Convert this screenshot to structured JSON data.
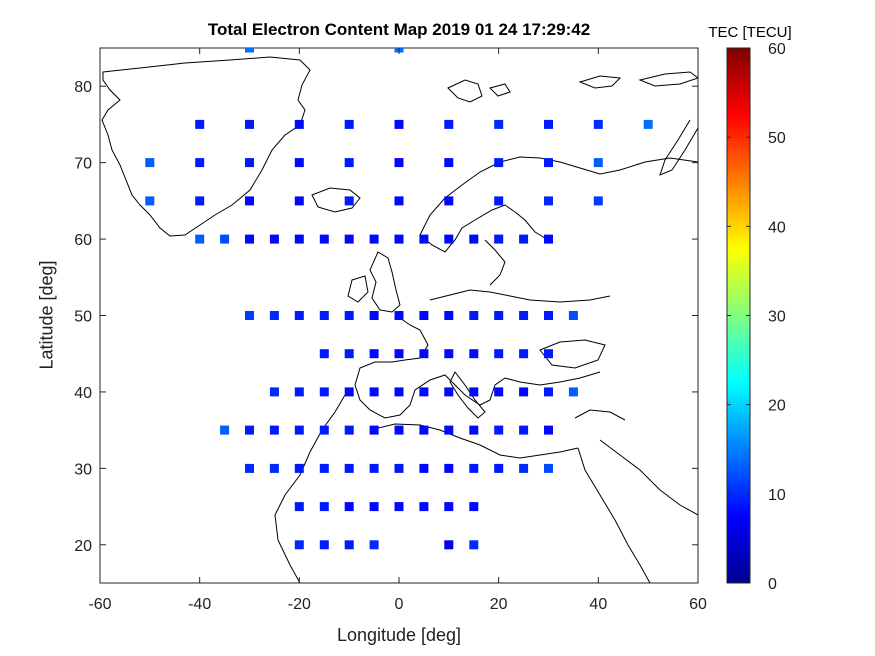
{
  "chart_data": {
    "type": "scatter",
    "title": "Total Electron Content Map 2019 01 24 17:29:42",
    "xlabel": "Longitude [deg]",
    "ylabel": "Latitude [deg]",
    "xlim": [
      -60,
      60
    ],
    "ylim": [
      15,
      85
    ],
    "xticks": [
      -60,
      -40,
      -20,
      0,
      20,
      40,
      60
    ],
    "yticks": [
      20,
      30,
      40,
      50,
      60,
      70,
      80
    ],
    "colorbar": {
      "label": "TEC [TECU]",
      "range": [
        0,
        60
      ],
      "ticks": [
        0,
        10,
        20,
        30,
        40,
        50,
        60
      ],
      "colormap": "jet"
    },
    "grid": false,
    "points": [
      {
        "lon": -30,
        "lat": 85,
        "tec": 14
      },
      {
        "lon": 0,
        "lat": 85,
        "tec": 14
      },
      {
        "lon": -40,
        "lat": 75,
        "tec": 9
      },
      {
        "lon": -30,
        "lat": 75,
        "tec": 9
      },
      {
        "lon": -20,
        "lat": 75,
        "tec": 8
      },
      {
        "lon": -10,
        "lat": 75,
        "tec": 9
      },
      {
        "lon": 0,
        "lat": 75,
        "tec": 8
      },
      {
        "lon": 10,
        "lat": 75,
        "tec": 9
      },
      {
        "lon": 20,
        "lat": 75,
        "tec": 10
      },
      {
        "lon": 30,
        "lat": 75,
        "tec": 9
      },
      {
        "lon": 40,
        "lat": 75,
        "tec": 10
      },
      {
        "lon": 50,
        "lat": 75,
        "tec": 14
      },
      {
        "lon": -50,
        "lat": 70,
        "tec": 13
      },
      {
        "lon": -40,
        "lat": 70,
        "tec": 9
      },
      {
        "lon": -30,
        "lat": 70,
        "tec": 9
      },
      {
        "lon": -20,
        "lat": 70,
        "tec": 8
      },
      {
        "lon": -10,
        "lat": 70,
        "tec": 9
      },
      {
        "lon": 0,
        "lat": 70,
        "tec": 8
      },
      {
        "lon": 10,
        "lat": 70,
        "tec": 8
      },
      {
        "lon": 20,
        "lat": 70,
        "tec": 9
      },
      {
        "lon": 30,
        "lat": 70,
        "tec": 9
      },
      {
        "lon": 40,
        "lat": 70,
        "tec": 13
      },
      {
        "lon": -50,
        "lat": 65,
        "tec": 13
      },
      {
        "lon": -40,
        "lat": 65,
        "tec": 9
      },
      {
        "lon": -30,
        "lat": 65,
        "tec": 8
      },
      {
        "lon": -20,
        "lat": 65,
        "tec": 8
      },
      {
        "lon": -10,
        "lat": 65,
        "tec": 9
      },
      {
        "lon": 0,
        "lat": 65,
        "tec": 8
      },
      {
        "lon": 10,
        "lat": 65,
        "tec": 8
      },
      {
        "lon": 20,
        "lat": 65,
        "tec": 9
      },
      {
        "lon": 30,
        "lat": 65,
        "tec": 10
      },
      {
        "lon": 40,
        "lat": 65,
        "tec": 11
      },
      {
        "lon": -40,
        "lat": 60,
        "tec": 13
      },
      {
        "lon": -35,
        "lat": 60,
        "tec": 12
      },
      {
        "lon": -30,
        "lat": 60,
        "tec": 8
      },
      {
        "lon": -25,
        "lat": 60,
        "tec": 8
      },
      {
        "lon": -20,
        "lat": 60,
        "tec": 8
      },
      {
        "lon": -15,
        "lat": 60,
        "tec": 8
      },
      {
        "lon": -10,
        "lat": 60,
        "tec": 8
      },
      {
        "lon": -5,
        "lat": 60,
        "tec": 8
      },
      {
        "lon": 0,
        "lat": 60,
        "tec": 8
      },
      {
        "lon": 5,
        "lat": 60,
        "tec": 8
      },
      {
        "lon": 10,
        "lat": 60,
        "tec": 8
      },
      {
        "lon": 15,
        "lat": 60,
        "tec": 8
      },
      {
        "lon": 20,
        "lat": 60,
        "tec": 9
      },
      {
        "lon": 25,
        "lat": 60,
        "tec": 9
      },
      {
        "lon": 30,
        "lat": 60,
        "tec": 8
      },
      {
        "lon": -30,
        "lat": 50,
        "tec": 11
      },
      {
        "lon": -25,
        "lat": 50,
        "tec": 10
      },
      {
        "lon": -20,
        "lat": 50,
        "tec": 9
      },
      {
        "lon": -15,
        "lat": 50,
        "tec": 9
      },
      {
        "lon": -10,
        "lat": 50,
        "tec": 9
      },
      {
        "lon": -5,
        "lat": 50,
        "tec": 8
      },
      {
        "lon": 0,
        "lat": 50,
        "tec": 8
      },
      {
        "lon": 5,
        "lat": 50,
        "tec": 8
      },
      {
        "lon": 10,
        "lat": 50,
        "tec": 8
      },
      {
        "lon": 15,
        "lat": 50,
        "tec": 9
      },
      {
        "lon": 20,
        "lat": 50,
        "tec": 9
      },
      {
        "lon": 25,
        "lat": 50,
        "tec": 9
      },
      {
        "lon": 30,
        "lat": 50,
        "tec": 9
      },
      {
        "lon": 35,
        "lat": 50,
        "tec": 12
      },
      {
        "lon": -15,
        "lat": 45,
        "tec": 9
      },
      {
        "lon": -10,
        "lat": 45,
        "tec": 9
      },
      {
        "lon": -5,
        "lat": 45,
        "tec": 8
      },
      {
        "lon": 0,
        "lat": 45,
        "tec": 8
      },
      {
        "lon": 5,
        "lat": 45,
        "tec": 8
      },
      {
        "lon": 10,
        "lat": 45,
        "tec": 8
      },
      {
        "lon": 15,
        "lat": 45,
        "tec": 8
      },
      {
        "lon": 20,
        "lat": 45,
        "tec": 9
      },
      {
        "lon": 25,
        "lat": 45,
        "tec": 9
      },
      {
        "lon": 30,
        "lat": 45,
        "tec": 9
      },
      {
        "lon": -25,
        "lat": 40,
        "tec": 10
      },
      {
        "lon": -20,
        "lat": 40,
        "tec": 9
      },
      {
        "lon": -15,
        "lat": 40,
        "tec": 9
      },
      {
        "lon": -10,
        "lat": 40,
        "tec": 8
      },
      {
        "lon": -5,
        "lat": 40,
        "tec": 8
      },
      {
        "lon": 0,
        "lat": 40,
        "tec": 8
      },
      {
        "lon": 5,
        "lat": 40,
        "tec": 8
      },
      {
        "lon": 10,
        "lat": 40,
        "tec": 8
      },
      {
        "lon": 15,
        "lat": 40,
        "tec": 8
      },
      {
        "lon": 20,
        "lat": 40,
        "tec": 8
      },
      {
        "lon": 25,
        "lat": 40,
        "tec": 8
      },
      {
        "lon": 30,
        "lat": 40,
        "tec": 9
      },
      {
        "lon": 35,
        "lat": 40,
        "tec": 13
      },
      {
        "lon": -35,
        "lat": 35,
        "tec": 13
      },
      {
        "lon": -30,
        "lat": 35,
        "tec": 9
      },
      {
        "lon": -25,
        "lat": 35,
        "tec": 9
      },
      {
        "lon": -20,
        "lat": 35,
        "tec": 9
      },
      {
        "lon": -15,
        "lat": 35,
        "tec": 9
      },
      {
        "lon": -10,
        "lat": 35,
        "tec": 9
      },
      {
        "lon": -5,
        "lat": 35,
        "tec": 8
      },
      {
        "lon": 0,
        "lat": 35,
        "tec": 8
      },
      {
        "lon": 5,
        "lat": 35,
        "tec": 8
      },
      {
        "lon": 10,
        "lat": 35,
        "tec": 8
      },
      {
        "lon": 15,
        "lat": 35,
        "tec": 8
      },
      {
        "lon": 20,
        "lat": 35,
        "tec": 9
      },
      {
        "lon": 25,
        "lat": 35,
        "tec": 9
      },
      {
        "lon": 30,
        "lat": 35,
        "tec": 8
      },
      {
        "lon": -30,
        "lat": 30,
        "tec": 10
      },
      {
        "lon": -25,
        "lat": 30,
        "tec": 10
      },
      {
        "lon": -20,
        "lat": 30,
        "tec": 9
      },
      {
        "lon": -15,
        "lat": 30,
        "tec": 9
      },
      {
        "lon": -10,
        "lat": 30,
        "tec": 9
      },
      {
        "lon": -5,
        "lat": 30,
        "tec": 9
      },
      {
        "lon": 0,
        "lat": 30,
        "tec": 9
      },
      {
        "lon": 5,
        "lat": 30,
        "tec": 8
      },
      {
        "lon": 10,
        "lat": 30,
        "tec": 8
      },
      {
        "lon": 15,
        "lat": 30,
        "tec": 9
      },
      {
        "lon": 20,
        "lat": 30,
        "tec": 9
      },
      {
        "lon": 25,
        "lat": 30,
        "tec": 10
      },
      {
        "lon": 30,
        "lat": 30,
        "tec": 12
      },
      {
        "lon": -20,
        "lat": 25,
        "tec": 9
      },
      {
        "lon": -15,
        "lat": 25,
        "tec": 9
      },
      {
        "lon": -10,
        "lat": 25,
        "tec": 8
      },
      {
        "lon": -5,
        "lat": 25,
        "tec": 8
      },
      {
        "lon": 0,
        "lat": 25,
        "tec": 8
      },
      {
        "lon": 5,
        "lat": 25,
        "tec": 8
      },
      {
        "lon": 10,
        "lat": 25,
        "tec": 8
      },
      {
        "lon": 15,
        "lat": 25,
        "tec": 8
      },
      {
        "lon": -20,
        "lat": 20,
        "tec": 10
      },
      {
        "lon": -15,
        "lat": 20,
        "tec": 9
      },
      {
        "lon": -10,
        "lat": 20,
        "tec": 9
      },
      {
        "lon": -5,
        "lat": 20,
        "tec": 10
      },
      {
        "lon": 10,
        "lat": 20,
        "tec": 6
      },
      {
        "lon": 15,
        "lat": 20,
        "tec": 10
      }
    ]
  }
}
